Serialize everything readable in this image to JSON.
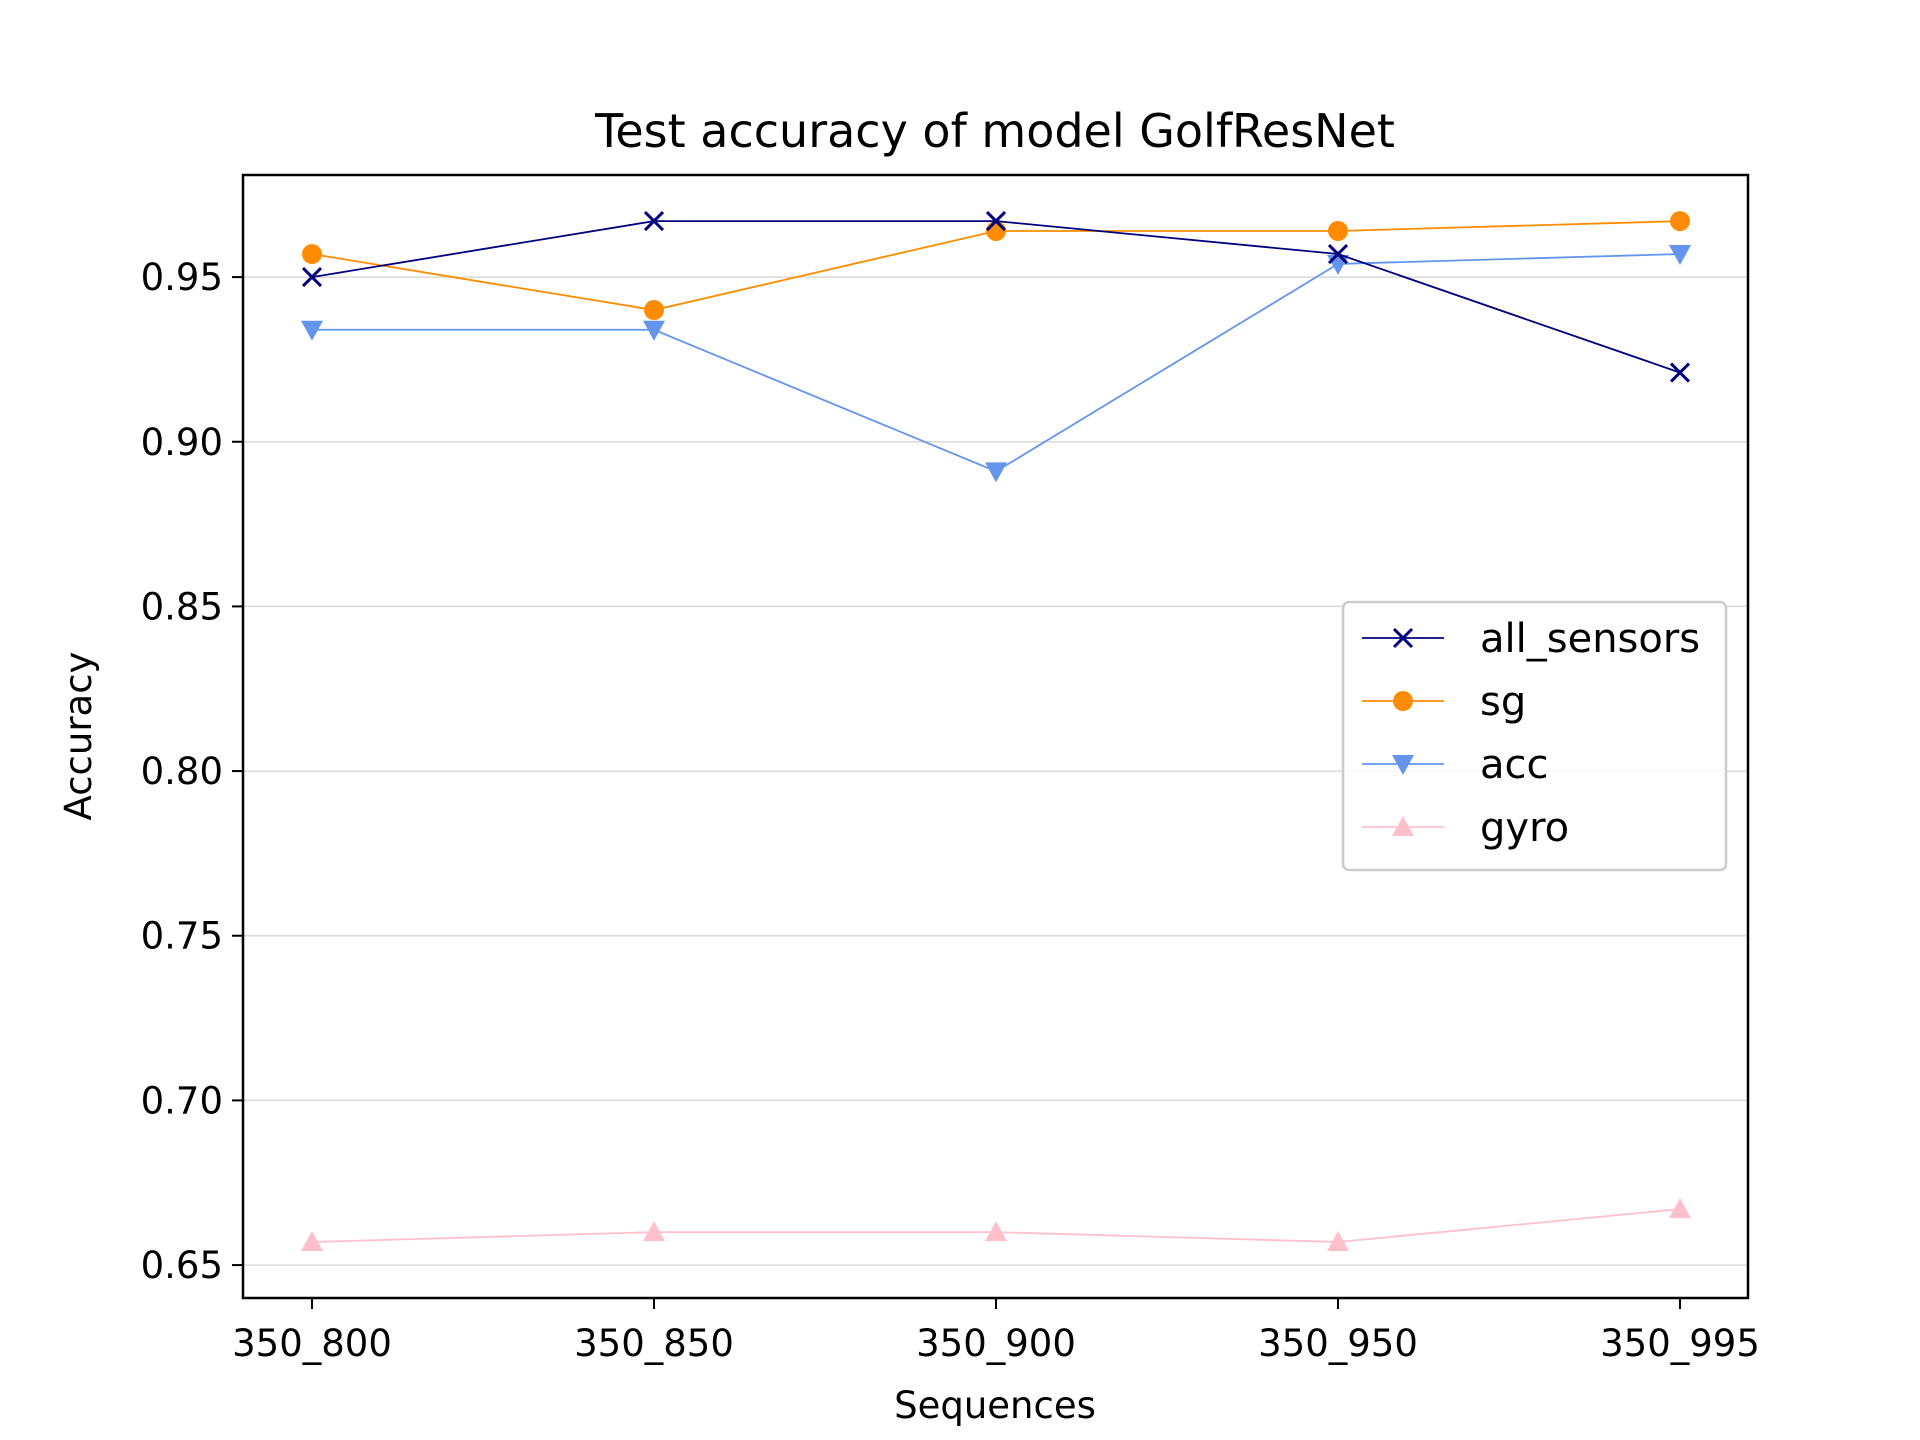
{
  "chart_data": {
    "type": "line",
    "title": "Test accuracy of model GolfResNet",
    "xlabel": "Sequences",
    "ylabel": "Accuracy",
    "categories": [
      "350_800",
      "350_850",
      "350_900",
      "350_950",
      "350_995"
    ],
    "ylim": [
      0.64,
      0.981
    ],
    "yticks": [
      0.65,
      0.7,
      0.75,
      0.8,
      0.85,
      0.9,
      0.95
    ],
    "ytick_labels": [
      "0.65",
      "0.70",
      "0.75",
      "0.80",
      "0.85",
      "0.90",
      "0.95"
    ],
    "grid": "horizontal",
    "legend_position": "center-right",
    "series": [
      {
        "name": "all_sensors",
        "color": "#000080",
        "marker": "x",
        "values": [
          0.95,
          0.967,
          0.967,
          0.957,
          0.921
        ]
      },
      {
        "name": "sg",
        "color": "#ff8c00",
        "marker": "circle",
        "values": [
          0.957,
          0.94,
          0.964,
          0.964,
          0.967
        ]
      },
      {
        "name": "acc",
        "color": "#6495ed",
        "marker": "triangle-down",
        "values": [
          0.934,
          0.934,
          0.891,
          0.954,
          0.957
        ]
      },
      {
        "name": "gyro",
        "color": "#ffc0cb",
        "marker": "triangle-up",
        "values": [
          0.657,
          0.66,
          0.66,
          0.657,
          0.667
        ]
      }
    ]
  }
}
